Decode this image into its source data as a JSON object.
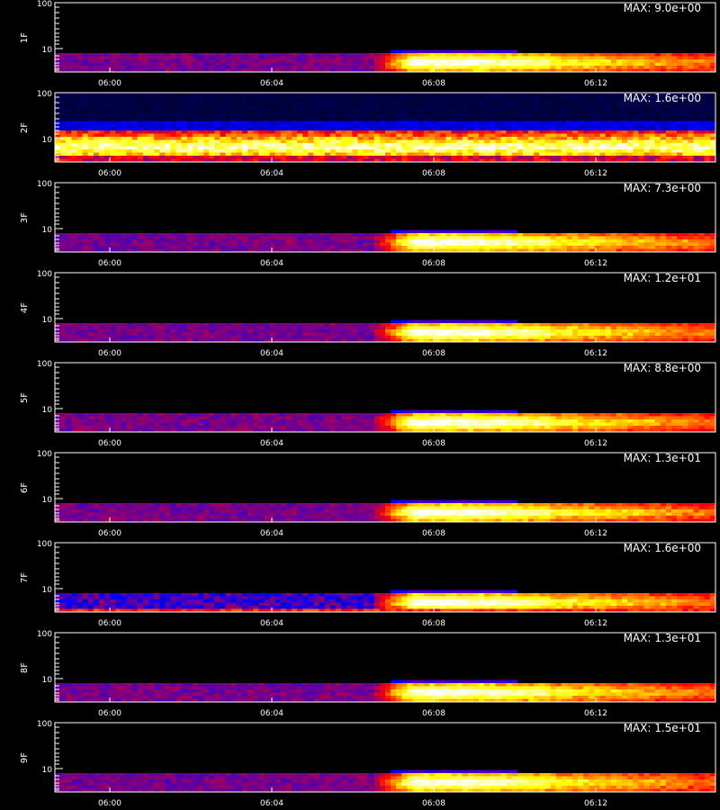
{
  "chart_data": {
    "type": "heatmap",
    "y_scale": "log",
    "y_ticks": [
      "100",
      "10"
    ],
    "x_ticks": [
      "06:00",
      "06:04",
      "06:08",
      "06:12"
    ],
    "colormap": [
      "#000000",
      "#0000ff",
      "#ff0000",
      "#ffff00",
      "#ffffff"
    ],
    "panels": [
      {
        "label": "1F",
        "max_label": "MAX: 9.0e+00",
        "pattern": "burst"
      },
      {
        "label": "2F",
        "max_label": "MAX: 1.6e+00",
        "pattern": "constant"
      },
      {
        "label": "3F",
        "max_label": "MAX: 7.3e+00",
        "pattern": "burst"
      },
      {
        "label": "4F",
        "max_label": "MAX: 1.2e+01",
        "pattern": "burst"
      },
      {
        "label": "5F",
        "max_label": "MAX: 8.8e+00",
        "pattern": "burst"
      },
      {
        "label": "6F",
        "max_label": "MAX: 1.3e+01",
        "pattern": "burst"
      },
      {
        "label": "7F",
        "max_label": "MAX: 1.6e+00",
        "pattern": "noisy-burst"
      },
      {
        "label": "8F",
        "max_label": "MAX: 1.3e+01",
        "pattern": "burst"
      },
      {
        "label": "9F",
        "max_label": "MAX: 1.5e+01",
        "pattern": "burst"
      }
    ]
  }
}
